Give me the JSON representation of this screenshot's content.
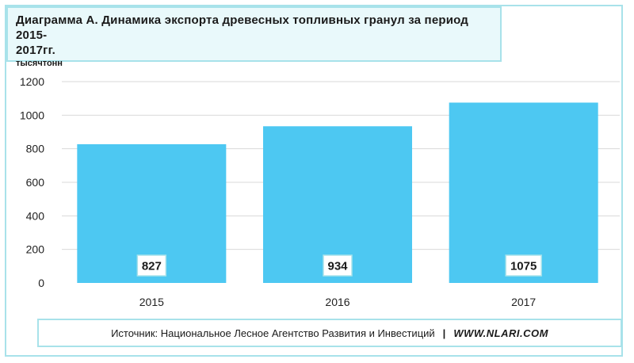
{
  "chart_data": {
    "type": "bar",
    "title": "Диаграмма А.  Динамика экспорта древесных топливных гранул за период 2015-2017гг.",
    "title_line1": "Диаграмма А.  Динамика экспорта древесных топливных гранул за период 2015-",
    "title_line2": "2017гг.",
    "unit": "тысячтонн",
    "categories": [
      "2015",
      "2016",
      "2017"
    ],
    "values": [
      827,
      934,
      1075
    ],
    "data_labels": [
      "827",
      "934",
      "1075"
    ],
    "yticks": [
      "0",
      "200",
      "400",
      "600",
      "800",
      "1000",
      "1200"
    ],
    "ylim": [
      0,
      1200
    ],
    "grid": true,
    "legend": "none",
    "bar_color": "#4dc8f2"
  },
  "source": {
    "text": "Источник: Национальное Лесное Агентство Развития и Инвестиций",
    "separator": "|",
    "url": "WWW.NLARI.COM"
  },
  "colors": {
    "frame": "#a8e2ea",
    "title_bg": "#e9f9fb",
    "bar": "#4dc8f2",
    "grid": "#d9d9d9"
  }
}
